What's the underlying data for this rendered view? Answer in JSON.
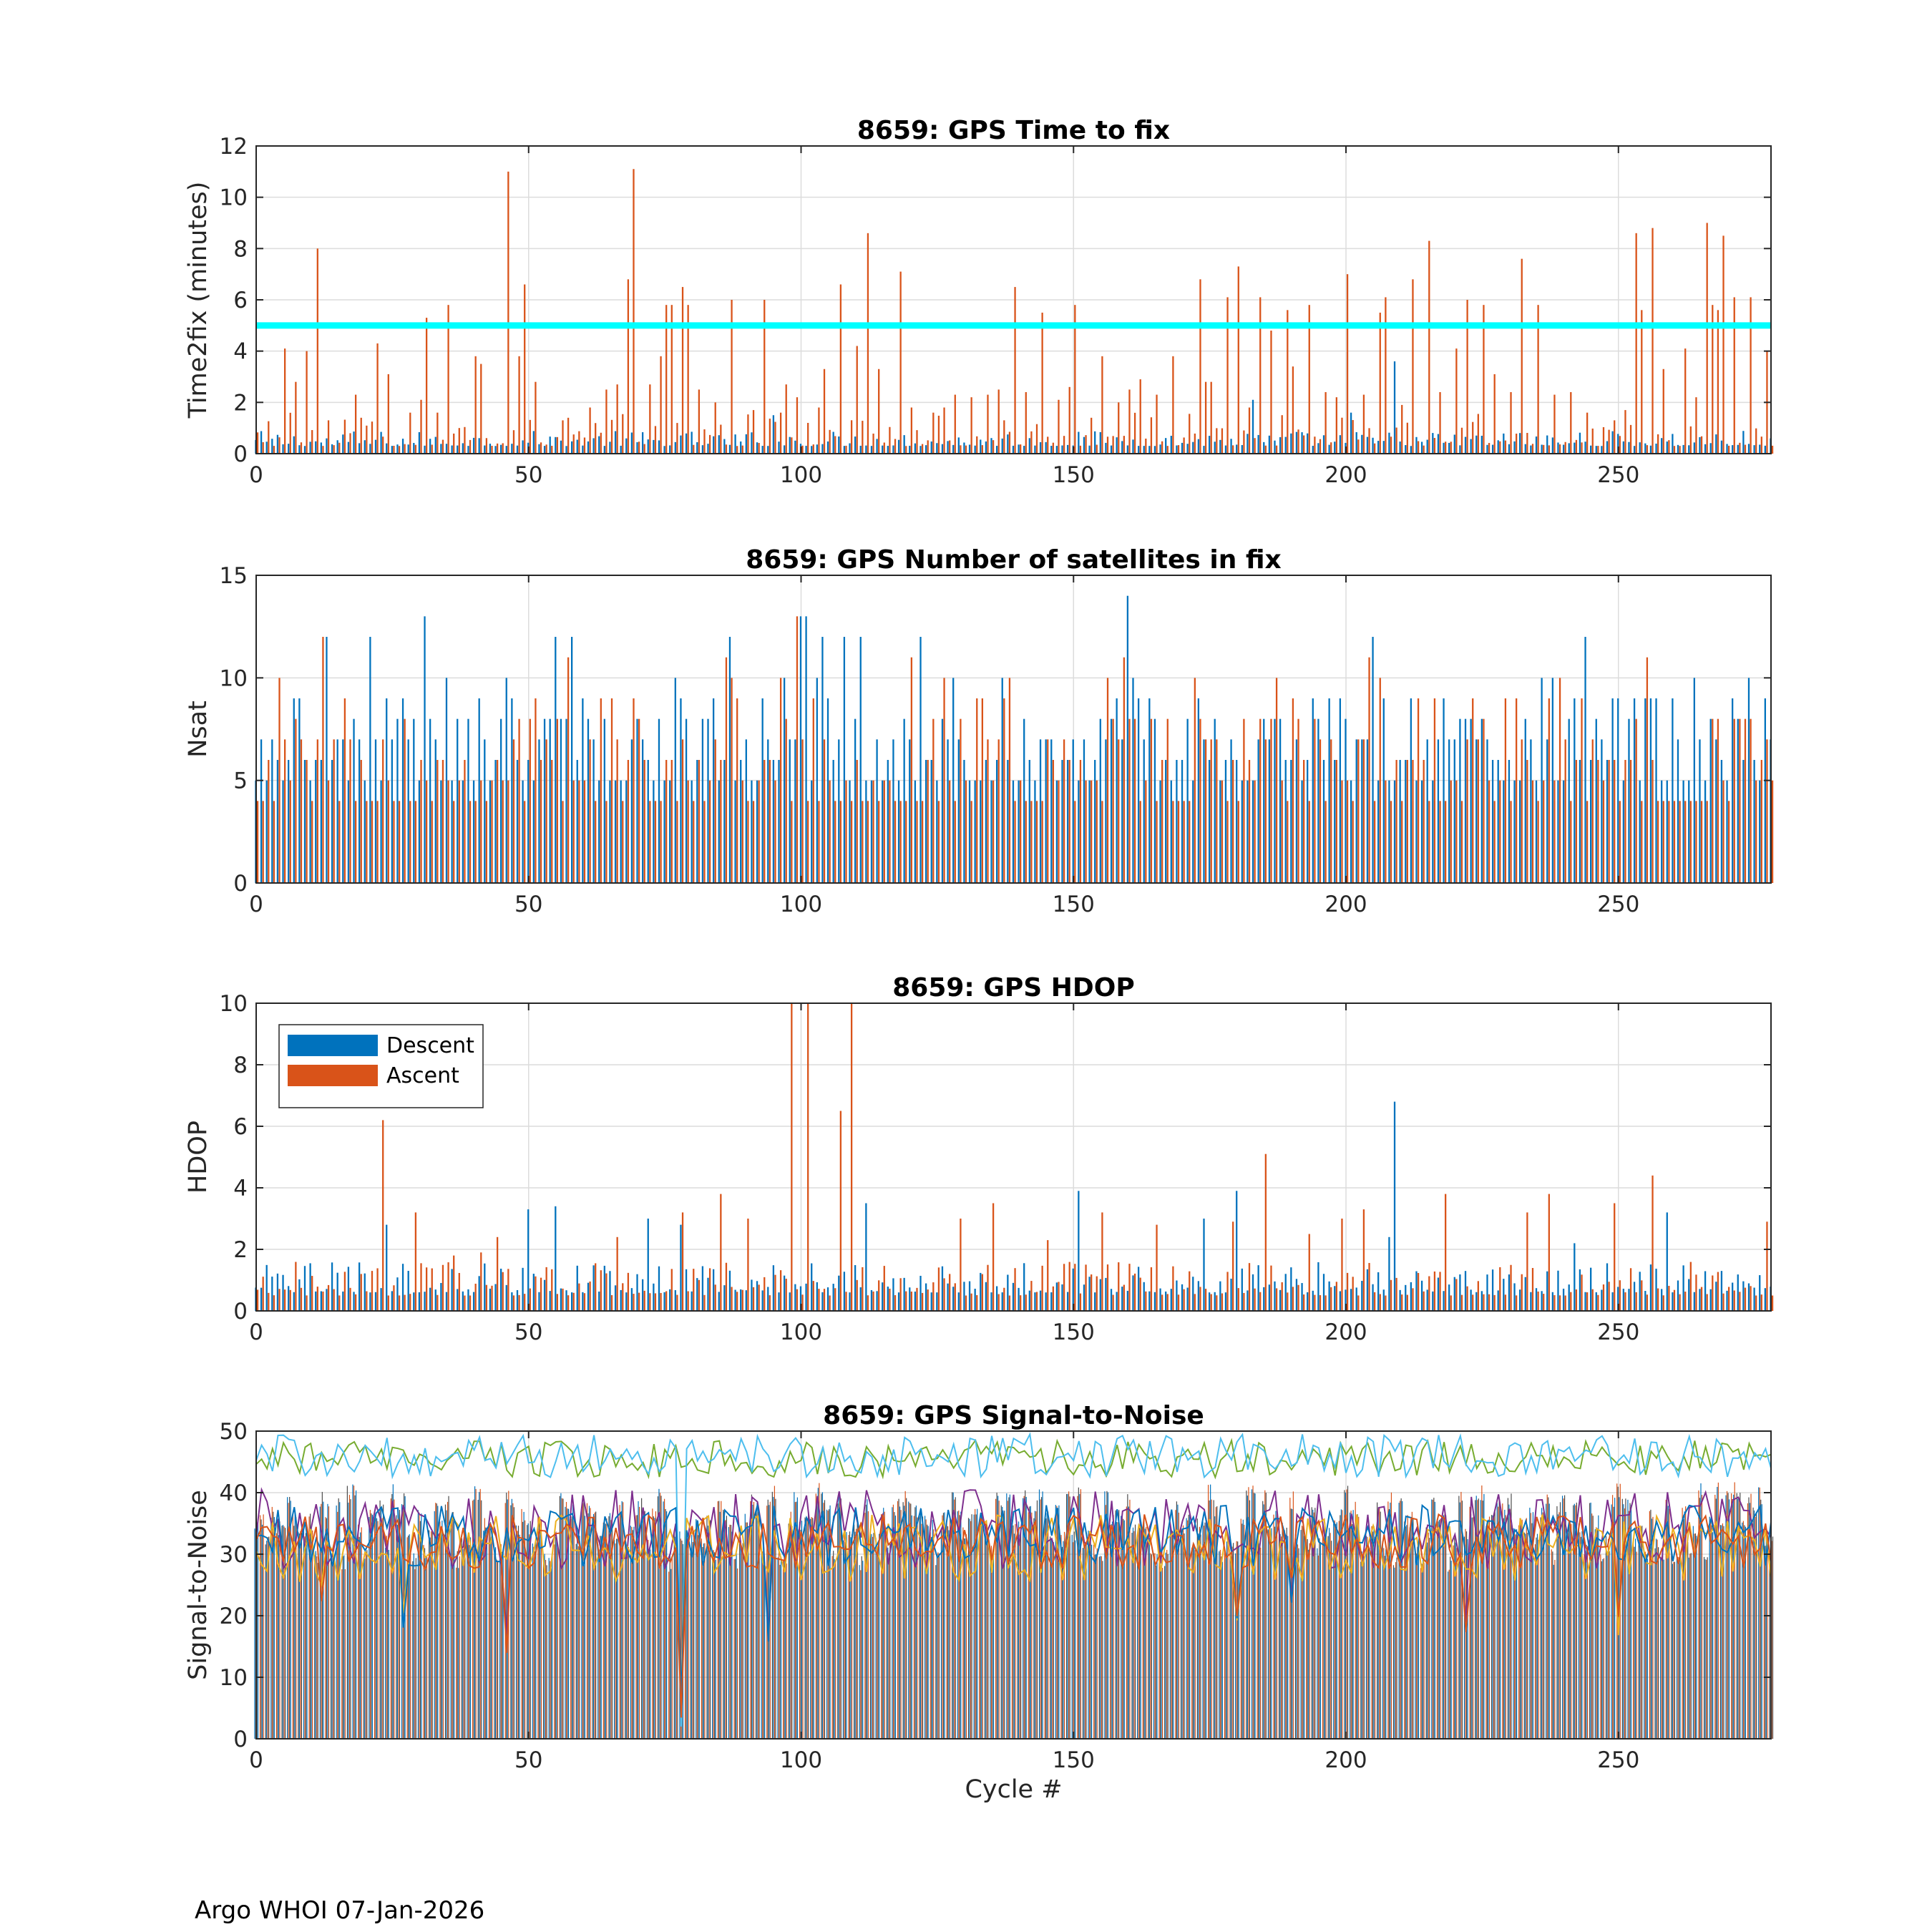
{
  "footer": "Argo WHOI 07-Jan-2026",
  "colors": {
    "descent": "#0072BD",
    "ascent": "#D95319",
    "threshold": "#00FFFF",
    "snr_lines": [
      "#77AC30",
      "#4DBEEE",
      "#7E2F8E",
      "#EDB120",
      "#0072BD",
      "#D95319"
    ]
  },
  "chart_data": [
    {
      "type": "bar",
      "title": "8659: GPS Time to fix",
      "xlabel": "",
      "ylabel": "Time2fix (minutes)",
      "xlim": [
        0,
        278
      ],
      "ylim": [
        0,
        12
      ],
      "xticks": [
        "0",
        "50",
        "100",
        "150",
        "200",
        "250"
      ],
      "yticks": [
        "0",
        "2",
        "4",
        "6",
        "8",
        "10",
        "12"
      ],
      "grid": true,
      "threshold_line": 5,
      "cycles": 278,
      "series": [
        {
          "key": "descent",
          "typical": [
            0.3,
            0.9
          ],
          "peaks": [
            [
              209,
              3.6
            ],
            [
              183,
              2.1
            ],
            [
              201,
              1.6
            ],
            [
              95,
              1.5
            ]
          ]
        },
        {
          "key": "ascent",
          "typical": [
            0.3,
            1.6
          ],
          "peaks": [
            [
              5,
              4.1
            ],
            [
              7,
              2.8
            ],
            [
              9,
              4.0
            ],
            [
              11,
              8.0
            ],
            [
              13,
              1.3
            ],
            [
              18,
              2.3
            ],
            [
              22,
              4.3
            ],
            [
              24,
              3.1
            ],
            [
              28,
              1.6
            ],
            [
              30,
              2.1
            ],
            [
              31,
              5.3
            ],
            [
              33,
              1.6
            ],
            [
              35,
              5.8
            ],
            [
              37,
              1.0
            ],
            [
              40,
              3.8
            ],
            [
              41,
              3.5
            ],
            [
              46,
              11.0
            ],
            [
              48,
              3.8
            ],
            [
              49,
              6.6
            ],
            [
              51,
              2.8
            ],
            [
              57,
              1.4
            ],
            [
              61,
              1.8
            ],
            [
              64,
              2.5
            ],
            [
              66,
              2.7
            ],
            [
              68,
              6.8
            ],
            [
              69,
              11.1
            ],
            [
              72,
              2.7
            ],
            [
              74,
              3.8
            ],
            [
              75,
              5.8
            ],
            [
              76,
              5.8
            ],
            [
              78,
              6.5
            ],
            [
              79,
              5.8
            ],
            [
              81,
              2.5
            ],
            [
              84,
              2.0
            ],
            [
              87,
              6.0
            ],
            [
              91,
              1.7
            ],
            [
              93,
              6.0
            ],
            [
              96,
              1.6
            ],
            [
              97,
              2.7
            ],
            [
              99,
              2.2
            ],
            [
              101,
              1.2
            ],
            [
              103,
              1.8
            ],
            [
              104,
              3.3
            ],
            [
              107,
              6.6
            ],
            [
              110,
              4.2
            ],
            [
              112,
              8.6
            ],
            [
              114,
              3.3
            ],
            [
              118,
              7.1
            ],
            [
              120,
              1.8
            ],
            [
              124,
              1.6
            ],
            [
              126,
              1.8
            ],
            [
              128,
              2.3
            ],
            [
              131,
              2.2
            ],
            [
              134,
              2.3
            ],
            [
              136,
              2.5
            ],
            [
              139,
              6.5
            ],
            [
              141,
              2.4
            ],
            [
              144,
              5.5
            ],
            [
              147,
              2.1
            ],
            [
              149,
              2.6
            ],
            [
              150,
              5.8
            ],
            [
              153,
              1.4
            ],
            [
              155,
              3.8
            ],
            [
              158,
              2.0
            ],
            [
              160,
              2.5
            ],
            [
              162,
              2.9
            ],
            [
              165,
              2.3
            ],
            [
              168,
              3.8
            ],
            [
              173,
              6.8
            ],
            [
              174,
              2.8
            ],
            [
              175,
              2.8
            ],
            [
              178,
              6.1
            ],
            [
              180,
              7.3
            ],
            [
              182,
              1.8
            ],
            [
              184,
              6.1
            ],
            [
              186,
              4.8
            ],
            [
              189,
              5.6
            ],
            [
              190,
              3.4
            ],
            [
              193,
              5.8
            ],
            [
              196,
              2.4
            ],
            [
              198,
              2.2
            ],
            [
              200,
              7.0
            ],
            [
              203,
              2.3
            ],
            [
              206,
              5.5
            ],
            [
              207,
              6.1
            ],
            [
              210,
              1.9
            ],
            [
              212,
              6.8
            ],
            [
              215,
              8.3
            ],
            [
              217,
              2.4
            ],
            [
              220,
              4.1
            ],
            [
              222,
              6.0
            ],
            [
              225,
              5.8
            ],
            [
              227,
              3.1
            ],
            [
              230,
              2.4
            ],
            [
              232,
              7.6
            ],
            [
              235,
              5.8
            ],
            [
              238,
              2.3
            ],
            [
              241,
              2.4
            ],
            [
              244,
              1.6
            ],
            [
              249,
              1.3
            ],
            [
              251,
              1.7
            ],
            [
              253,
              8.6
            ],
            [
              254,
              5.6
            ],
            [
              256,
              8.8
            ],
            [
              258,
              3.3
            ],
            [
              262,
              4.1
            ],
            [
              264,
              2.2
            ],
            [
              266,
              9.0
            ],
            [
              267,
              5.8
            ],
            [
              268,
              5.6
            ],
            [
              269,
              8.5
            ],
            [
              271,
              6.1
            ],
            [
              274,
              6.1
            ],
            [
              277,
              4.0
            ]
          ]
        }
      ]
    },
    {
      "type": "bar",
      "title": "8659: GPS Number of satellites in fix",
      "xlabel": "",
      "ylabel": "Nsat",
      "xlim": [
        0,
        278
      ],
      "ylim": [
        0,
        15
      ],
      "xticks": [
        "0",
        "50",
        "100",
        "150",
        "200",
        "250"
      ],
      "yticks": [
        "0",
        "5",
        "10",
        "15"
      ],
      "grid": true,
      "cycles": 278,
      "series": [
        {
          "key": "descent",
          "typical": [
            5,
            10
          ],
          "peaks": [
            [
              13,
              12
            ],
            [
              21,
              12
            ],
            [
              31,
              13
            ],
            [
              55,
              12
            ],
            [
              58,
              12
            ],
            [
              87,
              12
            ],
            [
              100,
              13
            ],
            [
              101,
              13
            ],
            [
              104,
              12
            ],
            [
              108,
              12
            ],
            [
              111,
              12
            ],
            [
              122,
              12
            ],
            [
              160,
              14
            ],
            [
              205,
              12
            ],
            [
              244,
              12
            ]
          ]
        },
        {
          "key": "ascent",
          "typical": [
            4,
            10
          ],
          "peaks": [
            [
              12,
              12
            ],
            [
              57,
              11
            ],
            [
              86,
              11
            ],
            [
              99,
              13
            ],
            [
              120,
              11
            ],
            [
              159,
              11
            ],
            [
              204,
              11
            ],
            [
              255,
              11
            ]
          ]
        }
      ]
    },
    {
      "type": "bar",
      "title": "8659: GPS HDOP",
      "xlabel": "",
      "ylabel": "HDOP",
      "xlim": [
        0,
        278
      ],
      "ylim": [
        0,
        10
      ],
      "xticks": [
        "0",
        "50",
        "100",
        "150",
        "200",
        "250"
      ],
      "yticks": [
        "0",
        "2",
        "4",
        "6",
        "8",
        "10"
      ],
      "grid": true,
      "legend": {
        "position": "top-left",
        "entries": [
          "Descent",
          "Ascent"
        ]
      },
      "cycles": 278,
      "series": [
        {
          "key": "descent",
          "typical": [
            0.6,
            1.6
          ],
          "peaks": [
            [
              24,
              2.8
            ],
            [
              50,
              3.3
            ],
            [
              55,
              3.4
            ],
            [
              72,
              3.0
            ],
            [
              78,
              2.8
            ],
            [
              112,
              3.5
            ],
            [
              151,
              3.9
            ],
            [
              174,
              3.0
            ],
            [
              180,
              3.9
            ],
            [
              208,
              2.4
            ],
            [
              209,
              6.8
            ],
            [
              242,
              2.2
            ],
            [
              259,
              3.2
            ]
          ]
        },
        {
          "key": "ascent",
          "typical": [
            0.5,
            1.6
          ],
          "peaks": [
            [
              23,
              6.2
            ],
            [
              29,
              3.2
            ],
            [
              36,
              1.8
            ],
            [
              41,
              1.9
            ],
            [
              44,
              2.4
            ],
            [
              66,
              2.4
            ],
            [
              78,
              3.2
            ],
            [
              85,
              3.8
            ],
            [
              90,
              3.0
            ],
            [
              98,
              10
            ],
            [
              101,
              10
            ],
            [
              107,
              6.5
            ],
            [
              109,
              10
            ],
            [
              129,
              3.0
            ],
            [
              135,
              3.5
            ],
            [
              145,
              2.3
            ],
            [
              155,
              3.2
            ],
            [
              165,
              2.8
            ],
            [
              179,
              2.9
            ],
            [
              185,
              5.1
            ],
            [
              193,
              2.5
            ],
            [
              199,
              3.0
            ],
            [
              203,
              3.3
            ],
            [
              218,
              3.8
            ],
            [
              233,
              3.2
            ],
            [
              237,
              3.8
            ],
            [
              249,
              3.5
            ],
            [
              256,
              4.4
            ],
            [
              277,
              2.9
            ]
          ]
        }
      ]
    },
    {
      "type": "bar-line",
      "title": "8659: GPS Signal-to-Noise",
      "xlabel": "Cycle #",
      "ylabel": "Signal-to-Noise",
      "xlim": [
        0,
        278
      ],
      "ylim": [
        0,
        50
      ],
      "xticks": [
        "0",
        "50",
        "100",
        "150",
        "200",
        "250"
      ],
      "yticks": [
        "0",
        "10",
        "20",
        "30",
        "40",
        "50"
      ],
      "grid": true,
      "cycles": 278,
      "bar_range": [
        30,
        42
      ],
      "line_bands": [
        {
          "center": 45.5,
          "amplitude": 3.0
        },
        {
          "center": 46.0,
          "amplitude": 3.5
        },
        {
          "center": 34.0,
          "amplitude": 6.5
        },
        {
          "center": 31.0,
          "amplitude": 5.5
        },
        {
          "center": 33.0,
          "amplitude": 5.0
        },
        {
          "center": 32.0,
          "amplitude": 4.5
        }
      ],
      "dips": [
        [
          12,
          20
        ],
        [
          27,
          15
        ],
        [
          46,
          12
        ],
        [
          78,
          2
        ],
        [
          94,
          14
        ],
        [
          180,
          17
        ],
        [
          190,
          22
        ],
        [
          222,
          15
        ],
        [
          250,
          14
        ]
      ]
    }
  ]
}
